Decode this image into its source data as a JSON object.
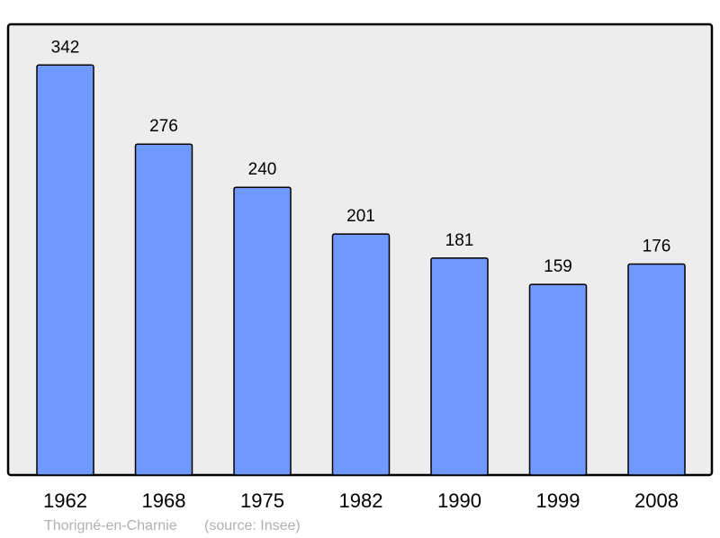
{
  "chart_data": {
    "type": "bar",
    "categories": [
      "1962",
      "1968",
      "1975",
      "1982",
      "1990",
      "1999",
      "2008"
    ],
    "values": [
      342,
      276,
      240,
      201,
      181,
      159,
      176
    ],
    "title": "",
    "xlabel": "",
    "ylabel": "",
    "ylim": [
      0,
      376
    ],
    "grid": false,
    "data_labels": true,
    "colors": {
      "bar": "#7099ff",
      "plot_background": "#ededed",
      "stroke": "#000000"
    }
  },
  "footer": {
    "place": "Thorigné-en-Charnie",
    "source": "(source: Insee)"
  }
}
